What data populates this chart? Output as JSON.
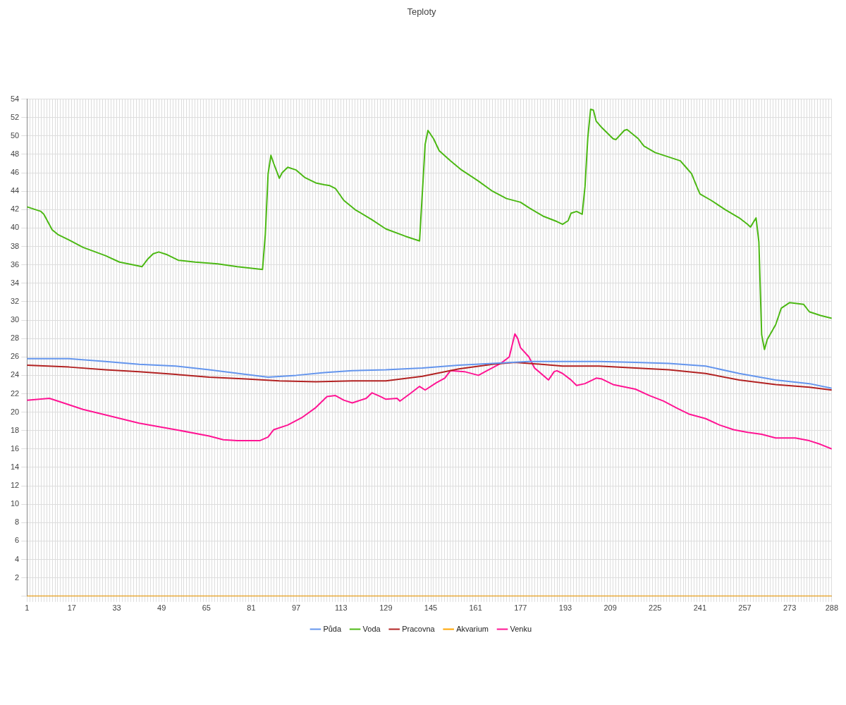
{
  "chart_data": {
    "type": "line",
    "title": "Teploty",
    "legend": "bottom",
    "grid": true,
    "marker": "none",
    "xlim": [
      1,
      288
    ],
    "xticks": [
      1,
      {
        "value": 2,
        "label": null
      },
      {
        "value": 3,
        "label": null
      },
      {
        "value": 4,
        "label": null
      },
      {
        "value": 5,
        "label": null
      },
      {
        "value": 6,
        "label": null
      },
      {
        "value": 7,
        "label": null
      },
      {
        "value": 8,
        "label": null
      },
      {
        "value": 9,
        "label": null
      },
      {
        "value": 10,
        "label": null
      },
      {
        "value": 11,
        "label": null
      },
      {
        "value": 12,
        "label": null
      },
      {
        "value": 13,
        "label": null
      },
      {
        "value": 14,
        "label": null
      },
      {
        "value": 15,
        "label": null
      },
      {
        "value": 16,
        "label": null
      },
      17,
      {
        "value": 18,
        "label": null
      },
      {
        "value": 19,
        "label": null
      },
      {
        "value": 20,
        "label": null
      },
      {
        "value": 21,
        "label": null
      },
      {
        "value": 22,
        "label": null
      },
      {
        "value": 23,
        "label": null
      },
      {
        "value": 24,
        "label": null
      },
      {
        "value": 25,
        "label": null
      },
      {
        "value": 26,
        "label": null
      },
      {
        "value": 27,
        "label": null
      },
      {
        "value": 28,
        "label": null
      },
      {
        "value": 29,
        "label": null
      },
      {
        "value": 30,
        "label": null
      },
      {
        "value": 31,
        "label": null
      },
      {
        "value": 32,
        "label": null
      },
      33,
      {
        "value": 34,
        "label": null
      },
      {
        "value": 35,
        "label": null
      },
      {
        "value": 36,
        "label": null
      },
      {
        "value": 37,
        "label": null
      },
      {
        "value": 38,
        "label": null
      },
      {
        "value": 39,
        "label": null
      },
      {
        "value": 40,
        "label": null
      },
      {
        "value": 41,
        "label": null
      },
      {
        "value": 42,
        "label": null
      },
      {
        "value": 43,
        "label": null
      },
      {
        "value": 44,
        "label": null
      },
      {
        "value": 45,
        "label": null
      },
      {
        "value": 46,
        "label": null
      },
      {
        "value": 47,
        "label": null
      },
      {
        "value": 48,
        "label": null
      },
      49,
      {
        "value": 50,
        "label": null
      },
      {
        "value": 51,
        "label": null
      },
      {
        "value": 52,
        "label": null
      },
      {
        "value": 53,
        "label": null
      },
      {
        "value": 54,
        "label": null
      },
      {
        "value": 55,
        "label": null
      },
      {
        "value": 56,
        "label": null
      },
      {
        "value": 57,
        "label": null
      },
      {
        "value": 58,
        "label": null
      },
      {
        "value": 59,
        "label": null
      },
      {
        "value": 60,
        "label": null
      },
      {
        "value": 61,
        "label": null
      },
      {
        "value": 62,
        "label": null
      },
      {
        "value": 63,
        "label": null
      },
      {
        "value": 64,
        "label": null
      },
      65,
      {
        "value": 66,
        "label": null
      },
      {
        "value": 67,
        "label": null
      },
      {
        "value": 68,
        "label": null
      },
      {
        "value": 69,
        "label": null
      },
      {
        "value": 70,
        "label": null
      },
      {
        "value": 71,
        "label": null
      },
      {
        "value": 72,
        "label": null
      },
      {
        "value": 73,
        "label": null
      },
      {
        "value": 74,
        "label": null
      },
      {
        "value": 75,
        "label": null
      },
      {
        "value": 76,
        "label": null
      },
      {
        "value": 77,
        "label": null
      },
      {
        "value": 78,
        "label": null
      },
      {
        "value": 79,
        "label": null
      },
      {
        "value": 80,
        "label": null
      },
      81,
      {
        "value": 82,
        "label": null
      },
      {
        "value": 83,
        "label": null
      },
      {
        "value": 84,
        "label": null
      },
      {
        "value": 85,
        "label": null
      },
      {
        "value": 86,
        "label": null
      },
      {
        "value": 87,
        "label": null
      },
      {
        "value": 88,
        "label": null
      },
      {
        "value": 89,
        "label": null
      },
      {
        "value": 90,
        "label": null
      },
      {
        "value": 91,
        "label": null
      },
      {
        "value": 92,
        "label": null
      },
      {
        "value": 93,
        "label": null
      },
      {
        "value": 94,
        "label": null
      },
      {
        "value": 95,
        "label": null
      },
      {
        "value": 96,
        "label": null
      },
      97,
      {
        "value": 98,
        "label": null
      },
      {
        "value": 99,
        "label": null
      },
      {
        "value": 100,
        "label": null
      },
      {
        "value": 101,
        "label": null
      },
      {
        "value": 102,
        "label": null
      },
      {
        "value": 103,
        "label": null
      },
      {
        "value": 104,
        "label": null
      },
      {
        "value": 105,
        "label": null
      },
      {
        "value": 106,
        "label": null
      },
      {
        "value": 107,
        "label": null
      },
      {
        "value": 108,
        "label": null
      },
      {
        "value": 109,
        "label": null
      },
      {
        "value": 110,
        "label": null
      },
      {
        "value": 111,
        "label": null
      },
      {
        "value": 112,
        "label": null
      },
      113,
      {
        "value": 114,
        "label": null
      },
      {
        "value": 115,
        "label": null
      },
      {
        "value": 116,
        "label": null
      },
      {
        "value": 117,
        "label": null
      },
      {
        "value": 118,
        "label": null
      },
      {
        "value": 119,
        "label": null
      },
      {
        "value": 120,
        "label": null
      },
      {
        "value": 121,
        "label": null
      },
      {
        "value": 122,
        "label": null
      },
      {
        "value": 123,
        "label": null
      },
      {
        "value": 124,
        "label": null
      },
      {
        "value": 125,
        "label": null
      },
      {
        "value": 126,
        "label": null
      },
      {
        "value": 127,
        "label": null
      },
      {
        "value": 128,
        "label": null
      },
      129,
      {
        "value": 130,
        "label": null
      },
      {
        "value": 131,
        "label": null
      },
      {
        "value": 132,
        "label": null
      },
      {
        "value": 133,
        "label": null
      },
      {
        "value": 134,
        "label": null
      },
      {
        "value": 135,
        "label": null
      },
      {
        "value": 136,
        "label": null
      },
      {
        "value": 137,
        "label": null
      },
      {
        "value": 138,
        "label": null
      },
      {
        "value": 139,
        "label": null
      },
      {
        "value": 140,
        "label": null
      },
      {
        "value": 141,
        "label": null
      },
      {
        "value": 142,
        "label": null
      },
      {
        "value": 143,
        "label": null
      },
      {
        "value": 144,
        "label": null
      },
      145,
      {
        "value": 146,
        "label": null
      },
      {
        "value": 147,
        "label": null
      },
      {
        "value": 148,
        "label": null
      },
      {
        "value": 149,
        "label": null
      },
      {
        "value": 150,
        "label": null
      },
      {
        "value": 151,
        "label": null
      },
      {
        "value": 152,
        "label": null
      },
      {
        "value": 153,
        "label": null
      },
      {
        "value": 154,
        "label": null
      },
      {
        "value": 155,
        "label": null
      },
      {
        "value": 156,
        "label": null
      },
      {
        "value": 157,
        "label": null
      },
      {
        "value": 158,
        "label": null
      },
      {
        "value": 159,
        "label": null
      },
      {
        "value": 160,
        "label": null
      },
      161,
      {
        "value": 162,
        "label": null
      },
      {
        "value": 163,
        "label": null
      },
      {
        "value": 164,
        "label": null
      },
      {
        "value": 165,
        "label": null
      },
      {
        "value": 166,
        "label": null
      },
      {
        "value": 167,
        "label": null
      },
      {
        "value": 168,
        "label": null
      },
      {
        "value": 169,
        "label": null
      },
      {
        "value": 170,
        "label": null
      },
      {
        "value": 171,
        "label": null
      },
      {
        "value": 172,
        "label": null
      },
      {
        "value": 173,
        "label": null
      },
      {
        "value": 174,
        "label": null
      },
      {
        "value": 175,
        "label": null
      },
      {
        "value": 176,
        "label": null
      },
      177,
      {
        "value": 178,
        "label": null
      },
      {
        "value": 179,
        "label": null
      },
      {
        "value": 180,
        "label": null
      },
      {
        "value": 181,
        "label": null
      },
      {
        "value": 182,
        "label": null
      },
      {
        "value": 183,
        "label": null
      },
      {
        "value": 184,
        "label": null
      },
      {
        "value": 185,
        "label": null
      },
      {
        "value": 186,
        "label": null
      },
      {
        "value": 187,
        "label": null
      },
      {
        "value": 188,
        "label": null
      },
      {
        "value": 189,
        "label": null
      },
      {
        "value": 190,
        "label": null
      },
      {
        "value": 191,
        "label": null
      },
      {
        "value": 192,
        "label": null
      },
      193,
      {
        "value": 194,
        "label": null
      },
      {
        "value": 195,
        "label": null
      },
      {
        "value": 196,
        "label": null
      },
      {
        "value": 197,
        "label": null
      },
      {
        "value": 198,
        "label": null
      },
      {
        "value": 199,
        "label": null
      },
      {
        "value": 200,
        "label": null
      },
      {
        "value": 201,
        "label": null
      },
      {
        "value": 202,
        "label": null
      },
      {
        "value": 203,
        "label": null
      },
      {
        "value": 204,
        "label": null
      },
      {
        "value": 205,
        "label": null
      },
      {
        "value": 206,
        "label": null
      },
      {
        "value": 207,
        "label": null
      },
      {
        "value": 208,
        "label": null
      },
      209,
      {
        "value": 210,
        "label": null
      },
      {
        "value": 211,
        "label": null
      },
      {
        "value": 212,
        "label": null
      },
      {
        "value": 213,
        "label": null
      },
      {
        "value": 214,
        "label": null
      },
      {
        "value": 215,
        "label": null
      },
      {
        "value": 216,
        "label": null
      },
      {
        "value": 217,
        "label": null
      },
      {
        "value": 218,
        "label": null
      },
      {
        "value": 219,
        "label": null
      },
      {
        "value": 220,
        "label": null
      },
      {
        "value": 221,
        "label": null
      },
      {
        "value": 222,
        "label": null
      },
      {
        "value": 223,
        "label": null
      },
      {
        "value": 224,
        "label": null
      },
      225,
      {
        "value": 226,
        "label": null
      },
      {
        "value": 227,
        "label": null
      },
      {
        "value": 228,
        "label": null
      },
      {
        "value": 229,
        "label": null
      },
      {
        "value": 230,
        "label": null
      },
      {
        "value": 231,
        "label": null
      },
      {
        "value": 232,
        "label": null
      },
      {
        "value": 233,
        "label": null
      },
      {
        "value": 234,
        "label": null
      },
      {
        "value": 235,
        "label": null
      },
      {
        "value": 236,
        "label": null
      },
      {
        "value": 237,
        "label": null
      },
      {
        "value": 238,
        "label": null
      },
      {
        "value": 239,
        "label": null
      },
      {
        "value": 240,
        "label": null
      },
      241,
      {
        "value": 242,
        "label": null
      },
      {
        "value": 243,
        "label": null
      },
      {
        "value": 244,
        "label": null
      },
      {
        "value": 245,
        "label": null
      },
      {
        "value": 246,
        "label": null
      },
      {
        "value": 247,
        "label": null
      },
      {
        "value": 248,
        "label": null
      },
      {
        "value": 249,
        "label": null
      },
      {
        "value": 250,
        "label": null
      },
      {
        "value": 251,
        "label": null
      },
      {
        "value": 252,
        "label": null
      },
      {
        "value": 253,
        "label": null
      },
      {
        "value": 254,
        "label": null
      },
      {
        "value": 255,
        "label": null
      },
      {
        "value": 256,
        "label": null
      },
      257,
      {
        "value": 258,
        "label": null
      },
      {
        "value": 259,
        "label": null
      },
      {
        "value": 260,
        "label": null
      },
      {
        "value": 261,
        "label": null
      },
      {
        "value": 262,
        "label": null
      },
      {
        "value": 263,
        "label": null
      },
      {
        "value": 264,
        "label": null
      },
      {
        "value": 265,
        "label": null
      },
      {
        "value": 266,
        "label": null
      },
      {
        "value": 267,
        "label": null
      },
      {
        "value": 268,
        "label": null
      },
      {
        "value": 269,
        "label": null
      },
      {
        "value": 270,
        "label": null
      },
      {
        "value": 271,
        "label": null
      },
      {
        "value": 272,
        "label": null
      },
      273,
      {
        "value": 274,
        "label": null
      },
      {
        "value": 275,
        "label": null
      },
      {
        "value": 276,
        "label": null
      },
      {
        "value": 277,
        "label": null
      },
      {
        "value": 278,
        "label": null
      },
      {
        "value": 279,
        "label": null
      },
      {
        "value": 280,
        "label": null
      },
      {
        "value": 281,
        "label": null
      },
      {
        "value": 282,
        "label": null
      },
      {
        "value": 283,
        "label": null
      },
      {
        "value": 284,
        "label": null
      },
      {
        "value": 285,
        "label": null
      },
      {
        "value": 286,
        "label": null
      },
      {
        "value": 287,
        "label": null
      },
      288
    ],
    "ylim": [
      0,
      54
    ],
    "yticks": [
      {
        "value": 0,
        "label": null
      },
      2,
      4,
      6,
      8,
      10,
      12,
      14,
      16,
      18,
      20,
      22,
      24,
      26,
      28,
      30,
      32,
      34,
      36,
      38,
      40,
      42,
      44,
      46,
      48,
      50,
      52,
      54
    ],
    "series": [
      {
        "name": "Půda",
        "color": "#6495ed",
        "x": [
          1,
          16,
          29,
          41,
          54,
          66,
          79,
          87,
          97,
          107,
          117,
          129,
          142,
          155,
          167,
          180,
          192,
          205,
          218,
          230,
          243,
          255,
          268,
          280,
          288
        ],
        "values": [
          25.8,
          25.8,
          25.5,
          25.2,
          25.0,
          24.6,
          24.1,
          23.8,
          24.0,
          24.3,
          24.5,
          24.6,
          24.8,
          25.1,
          25.3,
          25.5,
          25.5,
          25.5,
          25.4,
          25.3,
          25.0,
          24.2,
          23.5,
          23.1,
          22.6
        ]
      },
      {
        "name": "Voda",
        "color": "#4cb814",
        "x": [
          1,
          6,
          7,
          10,
          12,
          16,
          21,
          29,
          34,
          39,
          42,
          44,
          46,
          48,
          51,
          55,
          61,
          69,
          76,
          85,
          86,
          87,
          88,
          89,
          91,
          92,
          94,
          97,
          100,
          104,
          107,
          109,
          111,
          114,
          118,
          124,
          129,
          136,
          141,
          143,
          144,
          146,
          148,
          152,
          156,
          162,
          167,
          172,
          177,
          180,
          185,
          190,
          192,
          194,
          195,
          197,
          199,
          200,
          201,
          202,
          203,
          204,
          206,
          210,
          211,
          214,
          215,
          219,
          221,
          225,
          230,
          234,
          236,
          238,
          240,
          241,
          245,
          250,
          255,
          258,
          259,
          261,
          262,
          263,
          264,
          265,
          268,
          270,
          273,
          278,
          280,
          284,
          288
        ],
        "values": [
          42.3,
          41.8,
          41.5,
          39.8,
          39.3,
          38.7,
          37.9,
          37.0,
          36.3,
          36.0,
          35.8,
          36.6,
          37.2,
          37.4,
          37.1,
          36.5,
          36.3,
          36.1,
          35.8,
          35.5,
          39.3,
          45.9,
          47.9,
          47.0,
          45.4,
          46.0,
          46.6,
          46.3,
          45.5,
          44.9,
          44.7,
          44.6,
          44.3,
          43.0,
          42.0,
          40.9,
          39.9,
          39.1,
          38.6,
          49.1,
          50.6,
          49.7,
          48.4,
          47.3,
          46.3,
          45.1,
          44.0,
          43.2,
          42.8,
          42.2,
          41.3,
          40.7,
          40.4,
          40.8,
          41.6,
          41.8,
          41.5,
          44.5,
          49.8,
          52.9,
          52.8,
          51.6,
          50.9,
          49.7,
          49.6,
          50.6,
          50.7,
          49.7,
          48.9,
          48.2,
          47.7,
          47.3,
          46.6,
          45.9,
          44.4,
          43.7,
          43.0,
          42.0,
          41.1,
          40.4,
          40.1,
          41.1,
          38.5,
          28.4,
          26.8,
          27.9,
          29.5,
          31.3,
          31.9,
          31.7,
          30.9,
          30.5,
          30.2
        ]
      },
      {
        "name": "Pracovna",
        "color": "#b22222",
        "x": [
          1,
          16,
          29,
          41,
          54,
          66,
          79,
          91,
          104,
          117,
          129,
          142,
          155,
          167,
          175,
          180,
          192,
          205,
          218,
          230,
          243,
          255,
          268,
          280,
          288
        ],
        "values": [
          25.1,
          24.9,
          24.6,
          24.4,
          24.1,
          23.8,
          23.6,
          23.4,
          23.3,
          23.4,
          23.4,
          23.9,
          24.7,
          25.2,
          25.4,
          25.3,
          25.0,
          25.0,
          24.8,
          24.6,
          24.2,
          23.5,
          23.0,
          22.7,
          22.4
        ]
      },
      {
        "name": "Akvarium",
        "color": "#ffa500",
        "x": [
          1,
          288
        ],
        "values": [
          0,
          0
        ]
      },
      {
        "name": "Venku",
        "color": "#ff1493",
        "x": [
          1,
          9,
          14,
          21,
          29,
          41,
          54,
          66,
          71,
          76,
          84,
          87,
          89,
          94,
          99,
          104,
          108,
          111,
          114,
          117,
          122,
          124,
          127,
          129,
          133,
          134,
          138,
          141,
          143,
          147,
          150,
          152,
          157,
          162,
          165,
          170,
          173,
          175,
          176,
          177,
          180,
          182,
          187,
          189,
          190,
          192,
          195,
          197,
          200,
          204,
          206,
          210,
          218,
          223,
          228,
          233,
          237,
          243,
          248,
          253,
          258,
          263,
          268,
          275,
          280,
          284,
          288
        ],
        "values": [
          21.3,
          21.5,
          21.0,
          20.3,
          19.7,
          18.8,
          18.1,
          17.4,
          17.0,
          16.9,
          16.9,
          17.3,
          18.1,
          18.6,
          19.4,
          20.5,
          21.7,
          21.8,
          21.3,
          21.0,
          21.5,
          22.1,
          21.7,
          21.4,
          21.5,
          21.2,
          22.1,
          22.8,
          22.4,
          23.2,
          23.7,
          24.5,
          24.4,
          24.0,
          24.5,
          25.3,
          26.0,
          28.5,
          28.0,
          27.0,
          26.0,
          24.8,
          23.5,
          24.4,
          24.5,
          24.2,
          23.5,
          22.9,
          23.1,
          23.7,
          23.6,
          23.0,
          22.5,
          21.8,
          21.2,
          20.4,
          19.8,
          19.3,
          18.6,
          18.1,
          17.8,
          17.6,
          17.2,
          17.2,
          16.9,
          16.5,
          16.0
        ]
      }
    ]
  }
}
